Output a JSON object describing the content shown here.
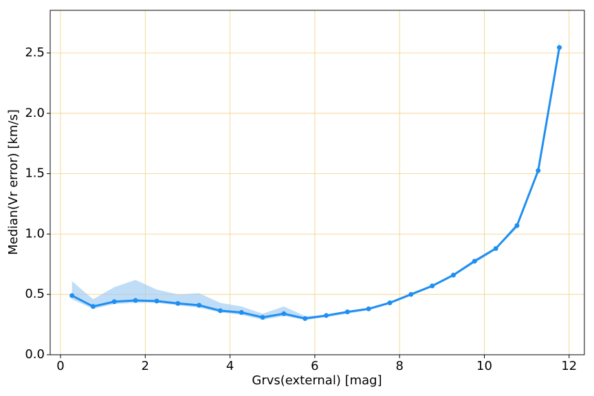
{
  "chart_data": {
    "type": "line",
    "xlabel": "Grvs(external) [mag]",
    "ylabel": "Median(Vr error) [km/s]",
    "x": [
      0.27,
      0.77,
      1.27,
      1.77,
      2.27,
      2.77,
      3.27,
      3.77,
      4.27,
      4.77,
      5.27,
      5.77,
      6.27,
      6.77,
      7.27,
      7.77,
      8.27,
      8.77,
      9.27,
      9.77,
      10.27,
      10.77,
      11.27,
      11.77
    ],
    "values": [
      0.49,
      0.4,
      0.44,
      0.45,
      0.445,
      0.425,
      0.41,
      0.365,
      0.35,
      0.31,
      0.34,
      0.3,
      0.325,
      0.355,
      0.38,
      0.43,
      0.5,
      0.57,
      0.66,
      0.775,
      0.88,
      1.07,
      1.525,
      2.545
    ],
    "band_upper": [
      0.61,
      0.46,
      0.56,
      0.62,
      0.54,
      0.5,
      0.51,
      0.43,
      0.4,
      0.34,
      0.4,
      0.32,
      0.33,
      0.36,
      0.39,
      0.44,
      0.51,
      0.58,
      0.67,
      0.79,
      0.89,
      1.09,
      1.54,
      2.61
    ],
    "band_lower": [
      0.46,
      0.38,
      0.42,
      0.43,
      0.43,
      0.41,
      0.39,
      0.35,
      0.33,
      0.29,
      0.32,
      0.29,
      0.31,
      0.34,
      0.37,
      0.42,
      0.49,
      0.56,
      0.65,
      0.76,
      0.87,
      1.05,
      1.51,
      2.5
    ],
    "color": "#1f8ef1",
    "band_color": "#9ecbf3",
    "grid_color": "#f2cf7e",
    "grid": true,
    "xlim": [
      -0.243,
      12.36
    ],
    "ylim": [
      0,
      2.853
    ],
    "xticks": [
      0,
      2,
      4,
      6,
      8,
      10,
      12
    ],
    "yticks": [
      {
        "value": 0,
        "label": "0.0"
      },
      {
        "value": 0.5,
        "label": "0.5"
      },
      {
        "value": 1,
        "label": "1.0"
      },
      {
        "value": 1.5,
        "label": "1.5"
      },
      {
        "value": 2,
        "label": "2.0"
      },
      {
        "value": 2.5,
        "label": "2.5"
      }
    ]
  }
}
